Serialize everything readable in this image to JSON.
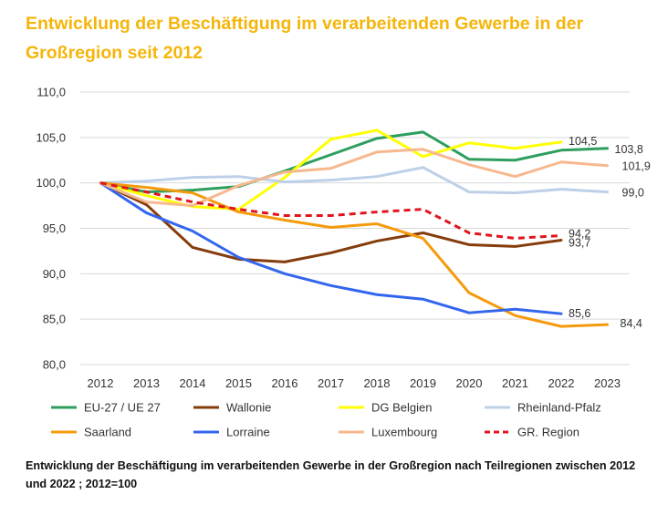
{
  "title": "Entwicklung der Beschäftigung im verarbeitenden Gewerbe in der Großregion seit 2012",
  "caption": "Entwicklung der Beschäftigung im verarbeitenden Gewerbe in der Großregion nach Teilregionen zwischen 2012 und 2022 ; 2012=100",
  "chart_data": {
    "type": "line",
    "title": "Entwicklung der Beschäftigung im verarbeitenden Gewerbe in der Großregion seit 2012",
    "xlabel": "",
    "ylabel": "",
    "x": [
      "2012",
      "2013",
      "2014",
      "2015",
      "2016",
      "2017",
      "2018",
      "2019",
      "2020",
      "2021",
      "2022",
      "2023"
    ],
    "ylim": [
      80,
      110
    ],
    "yticks": [
      "80,0",
      "85,0",
      "90,0",
      "95,0",
      "100,0",
      "105,0",
      "110,0"
    ],
    "grid": true,
    "legend_position": "bottom",
    "series": [
      {
        "name": "EU-27 / UE 27",
        "color": "#2e9e5e",
        "dashed": false,
        "values": [
          100,
          99.0,
          99.2,
          99.6,
          101.3,
          103.1,
          104.9,
          105.6,
          102.6,
          102.5,
          103.6,
          103.8
        ],
        "end_label": "103,8"
      },
      {
        "name": "Wallonie",
        "color": "#843c0c",
        "dashed": false,
        "values": [
          100,
          97.6,
          92.9,
          91.6,
          91.3,
          92.3,
          93.6,
          94.5,
          93.2,
          93.0,
          93.7,
          null
        ],
        "end_label": "93,7"
      },
      {
        "name": "DG Belgien",
        "color": "#ffff00",
        "dashed": false,
        "values": [
          100,
          98.6,
          97.4,
          97.1,
          100.6,
          104.8,
          105.8,
          102.9,
          104.4,
          103.8,
          104.5,
          null
        ],
        "end_label": "104,5"
      },
      {
        "name": "Rheinland-Pfalz",
        "color": "#bdd0e8",
        "dashed": false,
        "values": [
          100,
          100.2,
          100.6,
          100.7,
          100.1,
          100.3,
          100.7,
          101.7,
          99.0,
          98.9,
          99.3,
          99.0
        ],
        "end_label": "99,0"
      },
      {
        "name": "Saarland",
        "color": "#f59a0c",
        "dashed": false,
        "values": [
          100,
          99.5,
          98.9,
          96.8,
          95.9,
          95.1,
          95.5,
          93.9,
          87.9,
          85.4,
          84.2,
          84.4
        ],
        "end_label": "84,4"
      },
      {
        "name": "Lorraine",
        "color": "#3366ee",
        "dashed": false,
        "values": [
          100,
          96.7,
          94.7,
          91.8,
          90.0,
          88.7,
          87.7,
          87.2,
          85.7,
          86.1,
          85.6,
          null
        ],
        "end_label": "85,6"
      },
      {
        "name": "Luxembourg",
        "color": "#f6b88e",
        "dashed": false,
        "values": [
          100,
          97.9,
          97.5,
          99.7,
          101.2,
          101.6,
          103.4,
          103.7,
          102.0,
          100.7,
          102.3,
          101.9
        ],
        "end_label": "101,9"
      },
      {
        "name": "GR. Region",
        "color": "#e0141c",
        "dashed": true,
        "values": [
          100,
          99.0,
          97.9,
          97.1,
          96.4,
          96.4,
          96.8,
          97.1,
          94.5,
          93.9,
          94.2,
          null
        ],
        "end_label": "94,2"
      }
    ]
  }
}
